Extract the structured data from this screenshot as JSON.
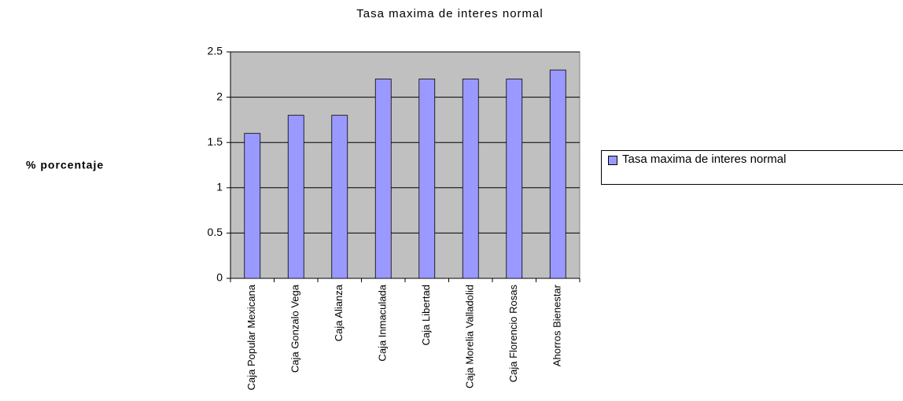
{
  "chart_data": {
    "type": "bar",
    "title": "Tasa maxima de interes normal",
    "y_label": "% porcentaje",
    "categories": [
      "Caja Popular Mexicana",
      "Caja Gonzalo Vega",
      "Caja Alianza",
      "Caja Inmaculada",
      "Caja Libertad",
      "Caja Morelia Valladolid",
      "Caja Florencio Rosas",
      "Ahorros Bienestar"
    ],
    "series": [
      {
        "name": "Tasa maxima de interes normal",
        "color": "#9999ff",
        "values": [
          1.6,
          1.8,
          1.8,
          2.2,
          2.2,
          2.2,
          2.2,
          2.3
        ]
      }
    ],
    "ylim": [
      0,
      2.5
    ],
    "yticks": [
      0,
      0.5,
      1,
      1.5,
      2,
      2.5
    ],
    "grid": true,
    "legend": "right"
  }
}
